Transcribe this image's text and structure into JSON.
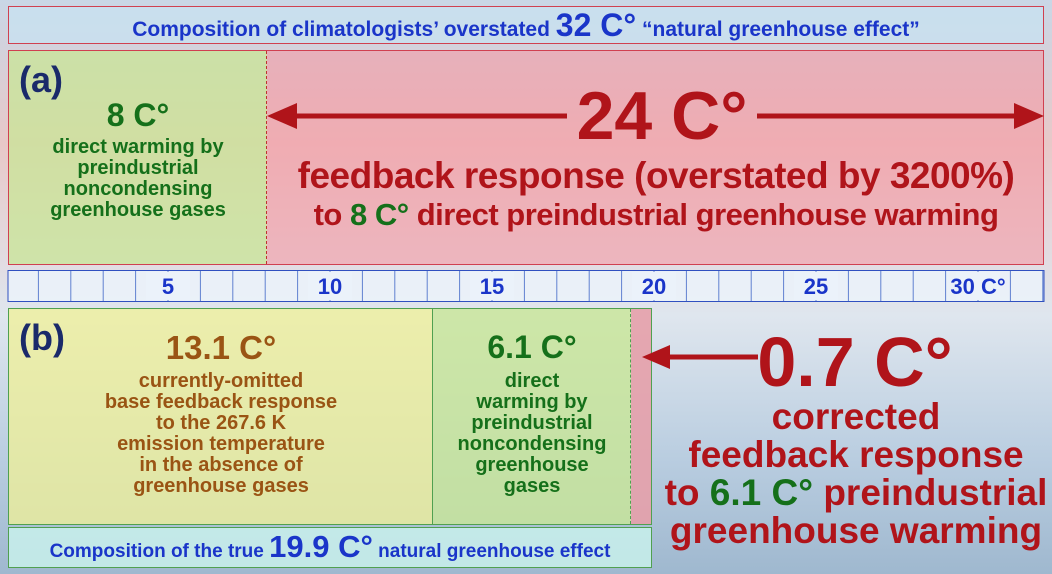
{
  "header": {
    "pre": "Composition of climatologists’ overstated",
    "big": "32 C°",
    "post": "“natural greenhouse effect”"
  },
  "panel_a": {
    "label": "(a)",
    "direct": {
      "value": "8 C°",
      "lines": [
        "direct warming by",
        "preindustrial",
        "noncondensing",
        "greenhouse gases"
      ]
    },
    "feedback": {
      "value": "24 C°",
      "line1": "feedback response (overstated by 3200%)",
      "line2_pre": "to",
      "line2_value": "8 C°",
      "line2_post": "direct preindustrial greenhouse warming"
    }
  },
  "scale": {
    "ticks": [
      {
        "value": 5,
        "label": "5"
      },
      {
        "value": 10,
        "label": "10"
      },
      {
        "value": 15,
        "label": "15"
      },
      {
        "value": 20,
        "label": "20"
      },
      {
        "value": 25,
        "label": "25"
      },
      {
        "value": 30,
        "label": "30 C°"
      }
    ]
  },
  "panel_b": {
    "label": "(b)",
    "base": {
      "value": "13.1 C°",
      "lines": [
        "currently-omitted",
        "base feedback response",
        "to the 267.6 K",
        "emission temperature",
        "in the absence of",
        "greenhouse gases"
      ]
    },
    "direct": {
      "value": "6.1 C°",
      "lines": [
        "direct",
        "warming by",
        "preindustrial",
        "noncondensing",
        "greenhouse",
        "gases"
      ]
    },
    "correction": {
      "value": "0.7 C°",
      "lines": [
        "corrected",
        "feedback response"
      ],
      "to_pre": "to",
      "to_value": "6.1 C°",
      "to_post": "preindustrial",
      "last": "greenhouse warming"
    }
  },
  "footer": {
    "pre": "Composition of the true",
    "big": "19.9 C°",
    "post": "natural greenhouse effect"
  }
}
